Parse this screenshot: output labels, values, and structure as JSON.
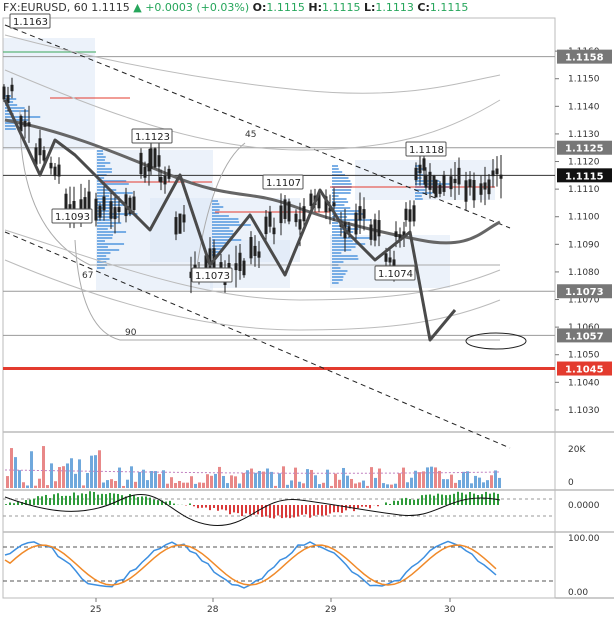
{
  "header": {
    "symbol": "FX:EURUSD, 60",
    "last": "1.1115",
    "arrow": "▲",
    "change": "+0.0003 (+0.03%)",
    "o_label": "O:",
    "o_value": "1.1115",
    "h_label": "H:",
    "h_value": "1.1115",
    "l_label": "L:",
    "l_value": "1.1113",
    "c_label": "C:",
    "c_value": "1.1115"
  },
  "colors": {
    "up": "#26a65b",
    "down": "#e05050",
    "candle": "#222222",
    "support": "#e33b2e",
    "path": "#4a4a4a",
    "ma": "#666666",
    "macd_up": "#2e9b3a",
    "macd_down": "#d93a3a",
    "stoch_k": "#3d8fe0",
    "stoch_d": "#f08a2a",
    "vol_up": "#6fa8dc",
    "vol_down": "#e88888"
  },
  "chart_data": {
    "type": "candlestick",
    "symbol": "FX:EURUSD",
    "timeframe": "60",
    "x_ticks": [
      "25",
      "28",
      "29",
      "30"
    ],
    "y_ticks": [
      "1.1030",
      "1.1040",
      "1.1050",
      "1.1060",
      "1.1070",
      "1.1080",
      "1.1090",
      "1.1100",
      "1.1110",
      "1.1120",
      "1.1130",
      "1.1140",
      "1.1150",
      "1.1160"
    ],
    "ylim": [
      1.1022,
      1.1172
    ],
    "price_labels": [
      {
        "value": 1.1158,
        "text": "1.1158",
        "style": "level"
      },
      {
        "value": 1.1125,
        "text": "1.1125",
        "style": "level"
      },
      {
        "value": 1.1115,
        "text": "1.1115",
        "style": "current"
      },
      {
        "value": 1.1073,
        "text": "1.1073",
        "style": "level"
      },
      {
        "value": 1.1057,
        "text": "1.1057",
        "style": "level"
      },
      {
        "value": 1.1045,
        "text": "1.1045",
        "style": "support"
      }
    ],
    "callouts": [
      {
        "text": "1.1163",
        "value": 1.1163
      },
      {
        "text": "1.1123",
        "value": 1.1123
      },
      {
        "text": "1.1093",
        "value": 1.1093
      },
      {
        "text": "1.1107",
        "value": 1.1107
      },
      {
        "text": "1.1073",
        "value": 1.1073
      },
      {
        "text": "1.1118",
        "value": 1.1118
      },
      {
        "text": "1.1074",
        "value": 1.1074
      }
    ],
    "fib_labels": [
      "45",
      "67",
      "90"
    ],
    "volume_ticks": [
      "20K",
      "0"
    ],
    "macd_ticks": [
      "0.0000"
    ],
    "stoch_ticks": [
      "100.00",
      "0.00"
    ]
  }
}
